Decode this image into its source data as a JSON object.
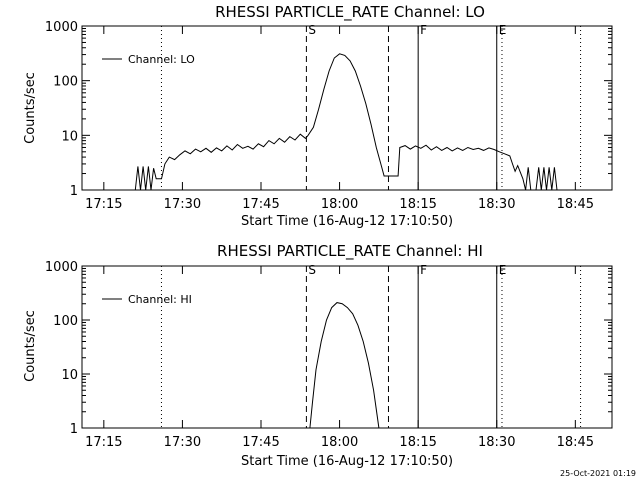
{
  "chart_data": [
    {
      "type": "line",
      "title": "RHESSI PARTICLE_RATE Channel: LO",
      "xlabel": "Start Time (16-Aug-12 17:10:50)",
      "ylabel": "Counts/sec",
      "y_scale": "log",
      "ylim": [
        1,
        1000
      ],
      "xlim": [
        "17:10:50",
        "18:52:00"
      ],
      "x_ticks": [
        "17:15",
        "17:30",
        "17:45",
        "18:00",
        "18:15",
        "18:30",
        "18:45"
      ],
      "y_ticks": [
        "1",
        "10",
        "100",
        "1000"
      ],
      "legend": "top-left",
      "grid": false,
      "markers": [
        {
          "label": "",
          "time": "17:26:00",
          "style": "dotted"
        },
        {
          "label": "S",
          "time": "17:53:40",
          "style": "dashed"
        },
        {
          "label": "",
          "time": "18:09:20",
          "style": "dashed"
        },
        {
          "label": "F",
          "time": "18:15:00",
          "style": "solid"
        },
        {
          "label": "E",
          "time": "18:30:00",
          "style": "solid"
        },
        {
          "label": "",
          "time": "18:31:00",
          "style": "dotted"
        },
        {
          "label": "",
          "time": "18:46:00",
          "style": "dotted"
        }
      ],
      "series": [
        {
          "name": "Channel: LO",
          "points": [
            [
              "17:21:00",
              1
            ],
            [
              "17:21:30",
              2.7
            ],
            [
              "17:22:00",
              1
            ],
            [
              "17:22:30",
              2.7
            ],
            [
              "17:23:00",
              1
            ],
            [
              "17:23:30",
              2.7
            ],
            [
              "17:24:00",
              1
            ],
            [
              "17:24:30",
              2.5
            ],
            [
              "17:25:00",
              1.6
            ],
            [
              "17:26:00",
              1.6
            ],
            [
              "17:26:40",
              3.0
            ],
            [
              "17:27:30",
              4.0
            ],
            [
              "17:28:30",
              3.6
            ],
            [
              "17:29:30",
              4.4
            ],
            [
              "17:30:30",
              5.2
            ],
            [
              "17:31:30",
              4.6
            ],
            [
              "17:32:30",
              5.6
            ],
            [
              "17:33:30",
              5.0
            ],
            [
              "17:34:30",
              5.8
            ],
            [
              "17:35:30",
              4.9
            ],
            [
              "17:36:30",
              5.9
            ],
            [
              "17:37:30",
              5.2
            ],
            [
              "17:38:30",
              6.4
            ],
            [
              "17:39:30",
              5.4
            ],
            [
              "17:40:30",
              6.8
            ],
            [
              "17:41:30",
              5.8
            ],
            [
              "17:42:30",
              6.3
            ],
            [
              "17:43:30",
              5.6
            ],
            [
              "17:44:30",
              7.0
            ],
            [
              "17:45:30",
              6.2
            ],
            [
              "17:46:30",
              8.0
            ],
            [
              "17:47:30",
              7.0
            ],
            [
              "17:48:30",
              8.8
            ],
            [
              "17:49:30",
              7.5
            ],
            [
              "17:50:30",
              9.5
            ],
            [
              "17:51:30",
              8.2
            ],
            [
              "17:52:30",
              10.5
            ],
            [
              "17:53:30",
              8.8
            ],
            [
              "17:54:00",
              10.0
            ],
            [
              "17:55:00",
              14
            ],
            [
              "17:56:00",
              30
            ],
            [
              "17:57:00",
              70
            ],
            [
              "17:58:00",
              150
            ],
            [
              "17:59:00",
              260
            ],
            [
              "18:00:00",
              310
            ],
            [
              "18:01:00",
              290
            ],
            [
              "18:02:00",
              230
            ],
            [
              "18:03:00",
              150
            ],
            [
              "18:04:00",
              80
            ],
            [
              "18:05:00",
              38
            ],
            [
              "18:06:00",
              16
            ],
            [
              "18:07:00",
              6
            ],
            [
              "18:08:00",
              2.7
            ],
            [
              "18:08:30",
              1.8
            ],
            [
              "18:11:10",
              1.8
            ],
            [
              "18:11:30",
              6.0
            ],
            [
              "18:12:30",
              6.5
            ],
            [
              "18:13:30",
              5.6
            ],
            [
              "18:14:30",
              6.4
            ],
            [
              "18:15:30",
              5.8
            ],
            [
              "18:16:30",
              6.6
            ],
            [
              "18:17:30",
              5.4
            ],
            [
              "18:18:30",
              6.2
            ],
            [
              "18:19:30",
              5.3
            ],
            [
              "18:20:30",
              6.0
            ],
            [
              "18:21:30",
              5.2
            ],
            [
              "18:22:30",
              5.9
            ],
            [
              "18:23:30",
              5.3
            ],
            [
              "18:24:30",
              6.0
            ],
            [
              "18:25:30",
              5.5
            ],
            [
              "18:26:30",
              5.8
            ],
            [
              "18:27:30",
              5.3
            ],
            [
              "18:28:30",
              5.9
            ],
            [
              "18:29:30",
              5.5
            ],
            [
              "18:30:30",
              5.0
            ],
            [
              "18:31:30",
              4.6
            ],
            [
              "18:32:30",
              4.2
            ],
            [
              "18:33:00",
              3.0
            ],
            [
              "18:33:30",
              2.2
            ],
            [
              "18:34:00",
              2.8
            ],
            [
              "18:35:00",
              1.6
            ],
            [
              "18:35:30",
              1
            ],
            [
              "18:36:00",
              2.6
            ],
            [
              "18:36:30",
              1
            ],
            [
              "18:37:30",
              1
            ],
            [
              "18:38:00",
              2.6
            ],
            [
              "18:38:30",
              1
            ],
            [
              "18:39:00",
              2.6
            ],
            [
              "18:39:30",
              1
            ],
            [
              "18:40:00",
              2.6
            ],
            [
              "18:40:30",
              1
            ],
            [
              "18:41:00",
              2.6
            ],
            [
              "18:41:30",
              1
            ]
          ]
        }
      ]
    },
    {
      "type": "line",
      "title": "RHESSI PARTICLE_RATE Channel: HI",
      "xlabel": "Start Time (16-Aug-12 17:10:50)",
      "ylabel": "Counts/sec",
      "y_scale": "log",
      "ylim": [
        1,
        1000
      ],
      "xlim": [
        "17:10:50",
        "18:52:00"
      ],
      "x_ticks": [
        "17:15",
        "17:30",
        "17:45",
        "18:00",
        "18:15",
        "18:30",
        "18:45"
      ],
      "y_ticks": [
        "1",
        "10",
        "100",
        "1000"
      ],
      "legend": "top-left",
      "grid": false,
      "markers": [
        {
          "label": "",
          "time": "17:26:00",
          "style": "dotted"
        },
        {
          "label": "S",
          "time": "17:53:40",
          "style": "dashed"
        },
        {
          "label": "",
          "time": "18:09:20",
          "style": "dashed"
        },
        {
          "label": "F",
          "time": "18:15:00",
          "style": "solid"
        },
        {
          "label": "E",
          "time": "18:30:00",
          "style": "solid"
        },
        {
          "label": "",
          "time": "18:31:00",
          "style": "dotted"
        },
        {
          "label": "",
          "time": "18:46:00",
          "style": "dotted"
        }
      ],
      "series": [
        {
          "name": "Channel: HI",
          "points": [
            [
              "17:54:20",
              1
            ],
            [
              "17:54:50",
              3
            ],
            [
              "17:55:30",
              12
            ],
            [
              "17:56:30",
              40
            ],
            [
              "17:57:30",
              100
            ],
            [
              "17:58:30",
              170
            ],
            [
              "17:59:30",
              210
            ],
            [
              "18:00:30",
              200
            ],
            [
              "18:01:30",
              170
            ],
            [
              "18:02:30",
              130
            ],
            [
              "18:03:30",
              80
            ],
            [
              "18:04:30",
              40
            ],
            [
              "18:05:30",
              16
            ],
            [
              "18:06:30",
              5
            ],
            [
              "18:07:00",
              2.2
            ],
            [
              "18:07:30",
              1
            ]
          ]
        }
      ]
    }
  ],
  "footer": {
    "timestamp": "25-Oct-2021 01:19"
  }
}
